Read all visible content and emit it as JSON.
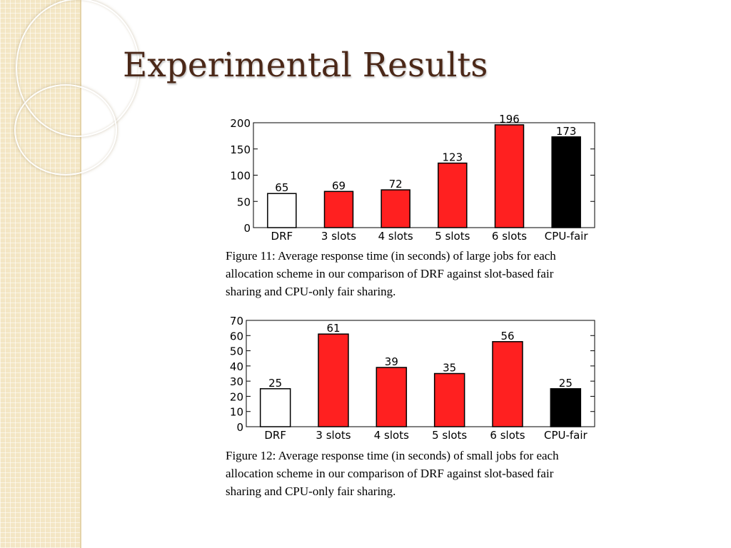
{
  "slide": {
    "title": "Experimental Results"
  },
  "colors": {
    "title": "#4b2818",
    "bar_red": "#ff2020",
    "bar_black": "#000000",
    "bar_white": "#ffffff"
  },
  "chart_data": [
    {
      "type": "bar",
      "categories": [
        "DRF",
        "3 slots",
        "4 slots",
        "5 slots",
        "6 slots",
        "CPU-fair"
      ],
      "values": [
        65,
        69,
        72,
        123,
        196,
        173
      ],
      "data_labels": [
        "65",
        "69",
        "72",
        "123",
        "196",
        "173"
      ],
      "bar_colors": [
        "#ffffff",
        "#ff2020",
        "#ff2020",
        "#ff2020",
        "#ff2020",
        "#000000"
      ],
      "yticks": [
        0,
        50,
        100,
        150,
        200
      ],
      "ylim": [
        0,
        200
      ],
      "caption": "Figure 11:  Average response time (in seconds) of large jobs for each allocation scheme in our comparison of DRF against slot-based fair sharing and CPU-only fair sharing."
    },
    {
      "type": "bar",
      "categories": [
        "DRF",
        "3 slots",
        "4 slots",
        "5 slots",
        "6 slots",
        "CPU-fair"
      ],
      "values": [
        25,
        61,
        39,
        35,
        56,
        25
      ],
      "data_labels": [
        "25",
        "61",
        "39",
        "35",
        "56",
        "25"
      ],
      "bar_colors": [
        "#ffffff",
        "#ff2020",
        "#ff2020",
        "#ff2020",
        "#ff2020",
        "#000000"
      ],
      "yticks": [
        0,
        10,
        20,
        30,
        40,
        50,
        60,
        70
      ],
      "ylim": [
        0,
        70
      ],
      "caption": "Figure 12:  Average response time (in seconds) of small jobs for each allocation scheme in our comparison of DRF against slot-based fair sharing and CPU-only fair sharing."
    }
  ]
}
